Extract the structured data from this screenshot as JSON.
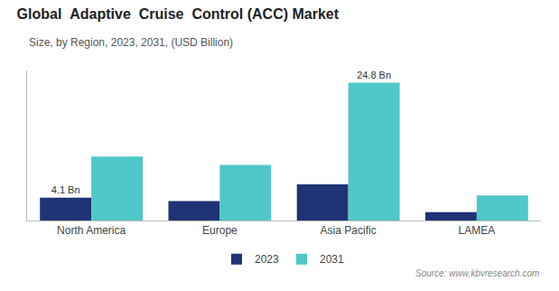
{
  "chart_data": {
    "type": "bar",
    "title": "Global  Adaptive  Cruise  Control (ACC) Market",
    "subtitle": "Size, by Region, 2023, 2031, (USD Billion)",
    "source": "Source: www.kbvresearch.com",
    "categories": [
      "North America",
      "Europe",
      "Asia Pacific",
      "LAMEA"
    ],
    "series": [
      {
        "name": "2023",
        "color": "#1f3375",
        "values": [
          4.1,
          3.5,
          6.5,
          1.5
        ]
      },
      {
        "name": "2031",
        "color": "#4ec8c8",
        "values": [
          11.5,
          10.0,
          24.8,
          4.5
        ]
      }
    ],
    "annotations": [
      {
        "text": "4.1 Bn",
        "series": "2023",
        "category": "North America"
      },
      {
        "text": "24.8 Bn",
        "series": "2031",
        "category": "Asia Pacific"
      }
    ],
    "ylim": [
      0,
      27
    ],
    "yticks": [],
    "grid": false,
    "legend": "bottom",
    "tick_labels": "x"
  }
}
